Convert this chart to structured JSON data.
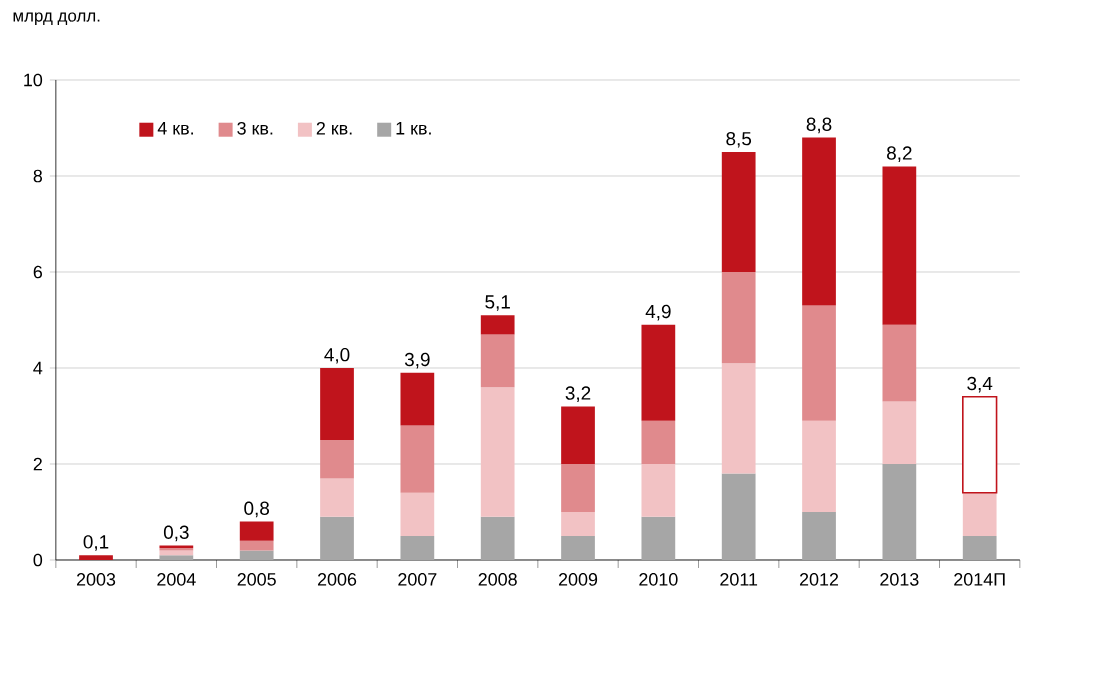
{
  "chart_data": {
    "type": "bar",
    "stacked": true,
    "ylabel": "млрд долл.",
    "categories": [
      "2003",
      "2004",
      "2005",
      "2006",
      "2007",
      "2008",
      "2009",
      "2010",
      "2011",
      "2012",
      "2013",
      "2014П"
    ],
    "series": [
      {
        "name": "1 кв.",
        "color": "#a6a6a6",
        "values": [
          null,
          0.1,
          0.2,
          0.9,
          0.5,
          0.9,
          0.5,
          0.9,
          1.8,
          1.0,
          2.0,
          0.5
        ]
      },
      {
        "name": "2 кв.",
        "color": "#f2c2c4",
        "values": [
          null,
          0.1,
          null,
          0.8,
          0.9,
          2.7,
          0.5,
          1.1,
          2.3,
          1.9,
          1.3,
          0.9
        ]
      },
      {
        "name": "3 кв.",
        "color": "#e08a8d",
        "values": [
          null,
          0.05,
          0.2,
          0.8,
          1.4,
          1.1,
          1.0,
          0.9,
          1.9,
          2.4,
          1.6,
          null
        ]
      },
      {
        "name": "4 кв.",
        "color": "#c0141c",
        "values": [
          0.1,
          0.05,
          0.4,
          1.5,
          1.1,
          0.4,
          1.2,
          2.0,
          2.5,
          3.5,
          3.3,
          null
        ]
      },
      {
        "color": "#c0141c",
        "values": [
          null,
          null,
          null,
          null,
          null,
          null,
          null,
          null,
          null,
          null,
          null,
          2.0
        ]
      }
    ],
    "totals": [
      "0,1",
      "0,3",
      "0,8",
      "4,0",
      "3,9",
      "5,1",
      "3,2",
      "4,9",
      "8,5",
      "8,8",
      "8,2",
      "3,4"
    ],
    "ylim": [
      0,
      10
    ],
    "yticks": [
      0,
      2,
      4,
      6,
      8,
      10
    ],
    "grid": "y",
    "legend": "top left"
  }
}
